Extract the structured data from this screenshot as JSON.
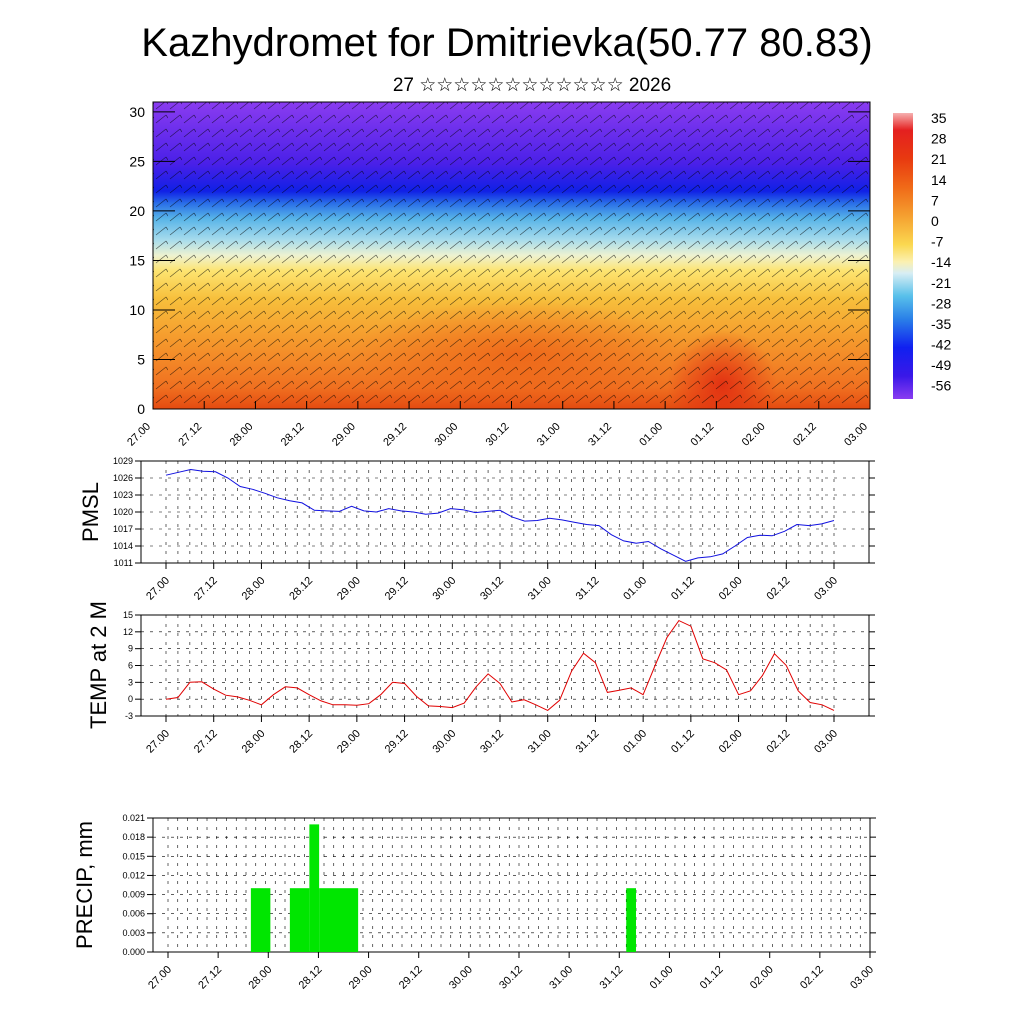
{
  "title": "Kazhydromet for Dmitrievka(50.77 80.83)",
  "subtitle": "27 ☆☆☆☆☆☆☆☆☆☆☆☆ 2026",
  "colors": {
    "pressure": "#1010e0",
    "temperature": "#e00000",
    "precip": "#00e600"
  },
  "chart_data": [
    {
      "type": "heatmap",
      "name": "cross-section",
      "description_of_field": "temperature (filled colour) with wind barbs vs time and height",
      "x_ticks": [
        "27.00",
        "27.12",
        "28.00",
        "28.12",
        "29.00",
        "29.12",
        "30.00",
        "30.12",
        "31.00",
        "31.12",
        "01.00",
        "01.12",
        "02.00",
        "02.12",
        "03.00"
      ],
      "y_ticks": [
        0,
        5,
        10,
        15,
        20,
        25,
        30
      ],
      "ylim": [
        0,
        31
      ],
      "colorbar_labels": [
        "35",
        "28",
        "21",
        "14",
        "7",
        "0",
        "-7",
        "-14",
        "-21",
        "-28",
        "-35",
        "-42",
        "-49",
        "-56"
      ],
      "colorbar_range": [
        -63,
        42
      ]
    },
    {
      "type": "line",
      "name": "PMSL",
      "ylabel": "PMSL",
      "ylim": [
        1011,
        1029
      ],
      "y_ticks": [
        "1029",
        "1026",
        "1023",
        "1020",
        "1017",
        "1014",
        "1011"
      ],
      "x_ticks": [
        "27.00",
        "27.12",
        "28.00",
        "28.12",
        "29.00",
        "29.12",
        "30.00",
        "30.12",
        "31.00",
        "31.12",
        "01.00",
        "01.12",
        "02.00",
        "02.12",
        "03.00"
      ],
      "values": [
        1026.5,
        1027.0,
        1027.5,
        1027.2,
        1027.1,
        1026.0,
        1024.5,
        1024.0,
        1023.3,
        1022.5,
        1022.0,
        1021.6,
        1020.3,
        1020.2,
        1020.1,
        1021.0,
        1020.2,
        1020.0,
        1020.6,
        1020.2,
        1020.0,
        1019.6,
        1019.8,
        1020.6,
        1020.4,
        1019.9,
        1020.1,
        1020.3,
        1019.1,
        1018.4,
        1018.5,
        1018.9,
        1018.6,
        1018.2,
        1017.8,
        1017.6,
        1016.0,
        1014.9,
        1014.5,
        1014.8,
        1013.5,
        1012.4,
        1011.3,
        1011.9,
        1012.1,
        1012.6,
        1014.0,
        1015.5,
        1015.9,
        1015.8,
        1016.6,
        1017.8,
        1017.6,
        1017.9,
        1018.5
      ]
    },
    {
      "type": "line",
      "name": "TEMP at 2 M",
      "ylabel": "TEMP at 2 M",
      "ylim": [
        -3,
        15
      ],
      "y_ticks": [
        "15",
        "12",
        "9",
        "6",
        "3",
        "0",
        "-3"
      ],
      "x_ticks": [
        "27.00",
        "27.12",
        "28.00",
        "28.12",
        "29.00",
        "29.12",
        "30.00",
        "30.12",
        "31.00",
        "31.12",
        "01.00",
        "01.12",
        "02.00",
        "02.12",
        "03.00"
      ],
      "values": [
        0.0,
        0.3,
        3.0,
        3.1,
        1.8,
        0.7,
        0.4,
        -0.2,
        -1.0,
        0.8,
        2.2,
        2.0,
        0.8,
        -0.3,
        -1.0,
        -1.0,
        -1.1,
        -0.8,
        0.8,
        3.0,
        2.8,
        0.5,
        -1.2,
        -1.3,
        -1.5,
        -0.7,
        2.2,
        4.5,
        2.8,
        -0.5,
        -0.1,
        -1.0,
        -2.0,
        -0.2,
        5.0,
        8.2,
        6.5,
        1.2,
        1.6,
        2.0,
        0.8,
        6.0,
        11.0,
        14.0,
        13.0,
        7.2,
        6.5,
        5.2,
        0.8,
        1.5,
        4.2,
        8.1,
        6.0,
        1.5,
        -0.6,
        -1.0,
        -2.0
      ]
    },
    {
      "type": "bar",
      "name": "PRECIP, mm",
      "ylabel": "PRECIP, mm",
      "ylim": [
        0,
        0.021
      ],
      "y_ticks": [
        "0.021",
        "0.018",
        "0.015",
        "0.012",
        "0.009",
        "0.006",
        "0.003",
        "0.000"
      ],
      "x_ticks": [
        "27.00",
        "27.12",
        "28.00",
        "28.12",
        "29.00",
        "29.12",
        "30.00",
        "30.12",
        "31.00",
        "31.12",
        "01.00",
        "01.12",
        "02.00",
        "02.12",
        "03.00"
      ],
      "bars": [
        {
          "t0": 17,
          "t1": 21,
          "value": 0.01
        },
        {
          "t0": 25,
          "t1": 29,
          "value": 0.01
        },
        {
          "t0": 29,
          "t1": 31,
          "value": 0.02
        },
        {
          "t0": 31,
          "t1": 39,
          "value": 0.01
        },
        {
          "t0": 94,
          "t1": 96,
          "value": 0.01
        }
      ],
      "time_units": "hours since 27.00 (x axis spans 0-144 h)"
    }
  ]
}
